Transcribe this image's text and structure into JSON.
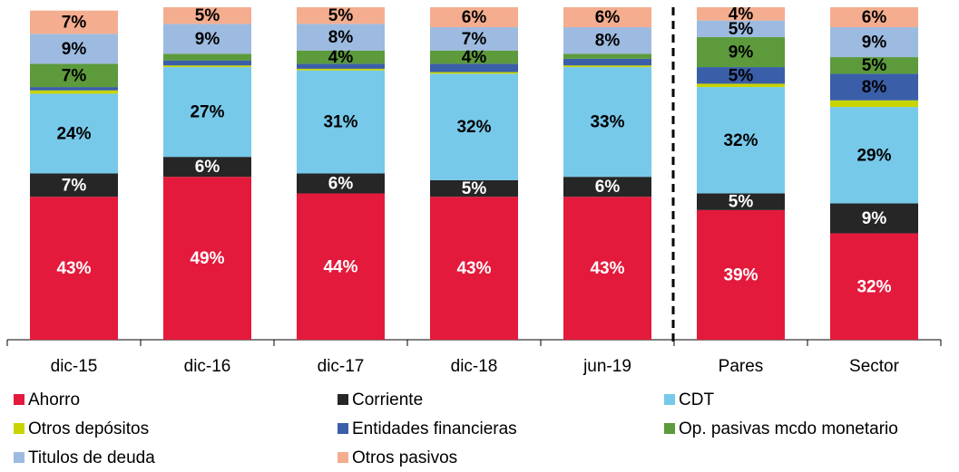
{
  "chart_data": {
    "type": "stacked_bar",
    "categories": [
      "dic-15",
      "dic-16",
      "dic-17",
      "dic-18",
      "jun-19",
      "Pares",
      "Sector"
    ],
    "ylim": [
      0,
      100
    ],
    "series": [
      {
        "name": "Ahorro",
        "color": "#e31a3c",
        "values": [
          43,
          49,
          44,
          43,
          43,
          39,
          32
        ],
        "value_labels": [
          "43%",
          "49%",
          "44%",
          "43%",
          "43%",
          "39%",
          "32%"
        ]
      },
      {
        "name": "Corriente",
        "color": "#262626",
        "values": [
          7,
          6,
          6,
          5,
          6,
          5,
          9
        ],
        "value_labels": [
          "7%",
          "6%",
          "6%",
          "5%",
          "6%",
          "5%",
          "9%"
        ]
      },
      {
        "name": "CDT",
        "color": "#77c9ea",
        "values": [
          24,
          27,
          31,
          32,
          33,
          32,
          29
        ],
        "value_labels": [
          "24%",
          "27%",
          "31%",
          "32%",
          "33%",
          "32%",
          "29%"
        ]
      },
      {
        "name": "Otros depósitos",
        "color": "#c8d400",
        "values": [
          1,
          0.5,
          0.5,
          0.5,
          0.5,
          1,
          2
        ],
        "value_labels": [
          null,
          null,
          null,
          null,
          null,
          null,
          null
        ]
      },
      {
        "name": "Entidades financieras",
        "color": "#3a5ea8",
        "values": [
          1,
          1.5,
          1.5,
          2.5,
          2,
          5,
          8
        ],
        "value_labels": [
          null,
          null,
          null,
          null,
          null,
          "5%",
          "8%"
        ]
      },
      {
        "name": "Op. pasivas mcdo monetario",
        "color": "#5c9a3c",
        "values": [
          7,
          2,
          4,
          4,
          1.5,
          9,
          5
        ],
        "value_labels": [
          "7%",
          null,
          "4%",
          "4%",
          null,
          "9%",
          "5%"
        ]
      },
      {
        "name": "Titulos de deuda",
        "color": "#9dbbe0",
        "values": [
          9,
          9,
          8,
          7,
          8,
          5,
          9
        ],
        "value_labels": [
          "9%",
          "9%",
          "8%",
          "7%",
          "8%",
          "5%",
          "9%"
        ]
      },
      {
        "name": "Otros pasivos",
        "color": "#f4ad8f",
        "values": [
          7,
          5,
          5,
          6,
          6,
          4,
          6
        ],
        "value_labels": [
          "7%",
          "5%",
          "5%",
          "6%",
          "6%",
          "4%",
          "6%"
        ]
      }
    ]
  }
}
